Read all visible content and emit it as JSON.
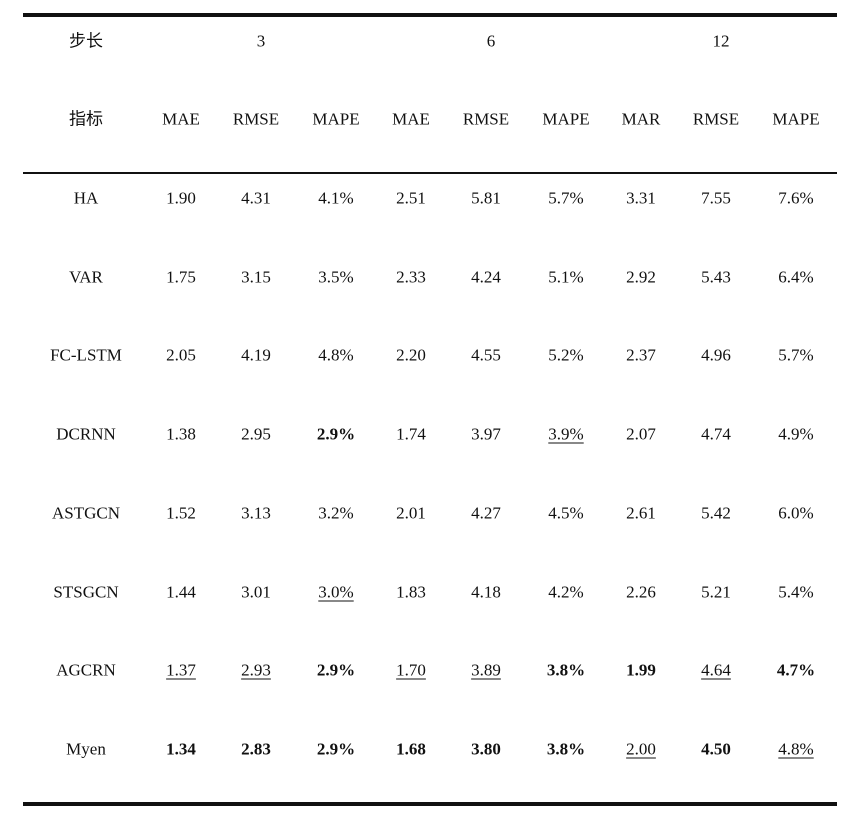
{
  "table": {
    "step_label": "步长",
    "metric_label": "指标",
    "step_groups": [
      "3",
      "6",
      "12"
    ],
    "metric_headers": [
      "MAE",
      "RMSE",
      "MAPE",
      "MAE",
      "RMSE",
      "MAPE",
      "MAR",
      "RMSE",
      "MAPE"
    ],
    "rows": [
      {
        "model": "HA",
        "cells": [
          {
            "v": "1.90"
          },
          {
            "v": "4.31"
          },
          {
            "v": "4.1%"
          },
          {
            "v": "2.51"
          },
          {
            "v": "5.81"
          },
          {
            "v": "5.7%"
          },
          {
            "v": "3.31"
          },
          {
            "v": "7.55"
          },
          {
            "v": "7.6%"
          }
        ]
      },
      {
        "model": "VAR",
        "cells": [
          {
            "v": "1.75"
          },
          {
            "v": "3.15"
          },
          {
            "v": "3.5%"
          },
          {
            "v": "2.33"
          },
          {
            "v": "4.24"
          },
          {
            "v": "5.1%"
          },
          {
            "v": "2.92"
          },
          {
            "v": "5.43"
          },
          {
            "v": "6.4%"
          }
        ]
      },
      {
        "model": "FC-LSTM",
        "cells": [
          {
            "v": "2.05"
          },
          {
            "v": "4.19"
          },
          {
            "v": "4.8%"
          },
          {
            "v": "2.20"
          },
          {
            "v": "4.55"
          },
          {
            "v": "5.2%"
          },
          {
            "v": "2.37"
          },
          {
            "v": "4.96"
          },
          {
            "v": "5.7%"
          }
        ]
      },
      {
        "model": "DCRNN",
        "cells": [
          {
            "v": "1.38"
          },
          {
            "v": "2.95"
          },
          {
            "v": "2.9%",
            "bold": true
          },
          {
            "v": "1.74"
          },
          {
            "v": "3.97"
          },
          {
            "v": "3.9%",
            "underline": true
          },
          {
            "v": "2.07"
          },
          {
            "v": "4.74"
          },
          {
            "v": "4.9%"
          }
        ]
      },
      {
        "model": "ASTGCN",
        "cells": [
          {
            "v": "1.52"
          },
          {
            "v": "3.13"
          },
          {
            "v": "3.2%"
          },
          {
            "v": "2.01"
          },
          {
            "v": "4.27"
          },
          {
            "v": "4.5%"
          },
          {
            "v": "2.61"
          },
          {
            "v": "5.42"
          },
          {
            "v": "6.0%"
          }
        ]
      },
      {
        "model": "STSGCN",
        "cells": [
          {
            "v": "1.44"
          },
          {
            "v": "3.01"
          },
          {
            "v": "3.0%",
            "underline": true
          },
          {
            "v": "1.83"
          },
          {
            "v": "4.18"
          },
          {
            "v": "4.2%"
          },
          {
            "v": "2.26"
          },
          {
            "v": "5.21"
          },
          {
            "v": "5.4%"
          }
        ]
      },
      {
        "model": "AGCRN",
        "cells": [
          {
            "v": "1.37",
            "underline": true
          },
          {
            "v": "2.93",
            "underline": true
          },
          {
            "v": "2.9%",
            "bold": true
          },
          {
            "v": "1.70",
            "underline": true
          },
          {
            "v": "3.89",
            "underline": true
          },
          {
            "v": "3.8%",
            "bold": true
          },
          {
            "v": "1.99",
            "bold": true
          },
          {
            "v": "4.64",
            "underline": true
          },
          {
            "v": "4.7%",
            "bold": true
          }
        ]
      },
      {
        "model": "Myen",
        "cells": [
          {
            "v": "1.34",
            "bold": true
          },
          {
            "v": "2.83",
            "bold": true
          },
          {
            "v": "2.9%",
            "bold": true
          },
          {
            "v": "1.68",
            "bold": true
          },
          {
            "v": "3.80",
            "bold": true
          },
          {
            "v": "3.8%",
            "bold": true
          },
          {
            "v": "2.00",
            "underline": true
          },
          {
            "v": "4.50",
            "bold": true
          },
          {
            "v": "4.8%",
            "underline": true
          }
        ]
      }
    ]
  }
}
